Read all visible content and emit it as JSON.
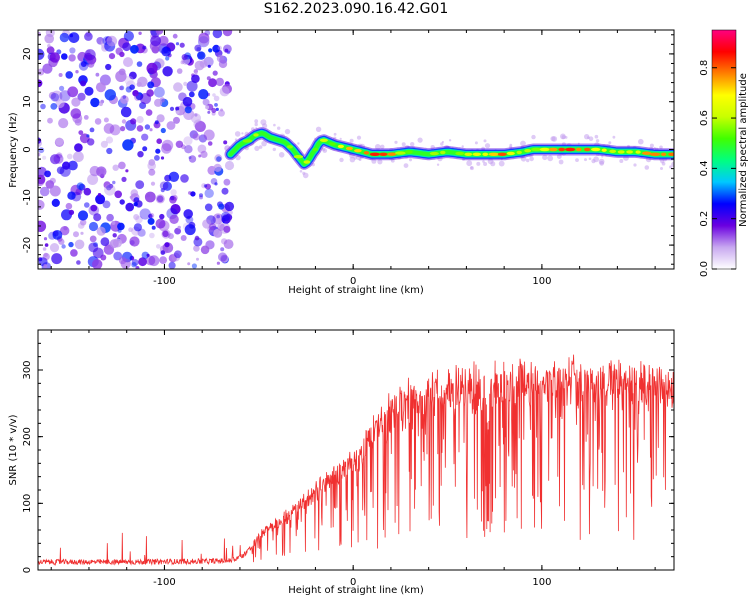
{
  "title": "S162.2023.090.16.42.G01",
  "chart_data": [
    {
      "type": "heatmap",
      "title": "S162.2023.090.16.42.G01",
      "xlabel": "Height of straight line (km)",
      "ylabel": "Frequency (Hz)",
      "xlim": [
        -167,
        170
      ],
      "ylim": [
        -25,
        25
      ],
      "x_ticks": [
        -100,
        0,
        100
      ],
      "x_tick_labels": [
        "-100",
        "0",
        "100"
      ],
      "y_ticks": [
        -20,
        -10,
        0,
        10,
        20
      ],
      "y_tick_labels": [
        "-20",
        "-10",
        "0",
        "10",
        "20"
      ],
      "colorbar": {
        "label": "Normalized spectral amplitude",
        "range": [
          0,
          0.95
        ],
        "ticks": [
          0.0,
          0.2,
          0.4,
          0.6,
          0.8
        ],
        "tick_labels": [
          "0.0",
          "0.2",
          "0.4",
          "0.6",
          "0.8"
        ],
        "colors": [
          "#ffffff",
          "#c8a8f0",
          "#6a00e0",
          "#0000ff",
          "#00c8ff",
          "#00ff80",
          "#40ff00",
          "#c8ff00",
          "#ffff00",
          "#ff8000",
          "#ff0000",
          "#ff0080"
        ]
      },
      "noise_region": {
        "x_from": -167,
        "x_to": -65,
        "color": "#8a3cf0"
      },
      "ridge": {
        "x": [
          -65,
          -60,
          -55,
          -52,
          -48,
          -44,
          -40,
          -36,
          -32,
          -28,
          -26,
          -24,
          -22,
          -20,
          -18,
          -16,
          -13,
          -10,
          -5,
          0,
          5,
          10,
          20,
          30,
          40,
          50,
          60,
          70,
          80,
          90,
          95,
          100,
          110,
          120,
          130,
          140,
          150,
          160,
          170
        ],
        "y": [
          -1,
          1,
          2,
          3,
          3.5,
          2.5,
          2,
          1.5,
          0,
          -2,
          -3,
          -2.5,
          -1,
          0,
          1.5,
          2,
          1.5,
          1,
          0.5,
          0,
          -0.5,
          -1,
          -1,
          -0.5,
          -1,
          -0.5,
          -1,
          -1,
          -1,
          -0.5,
          0,
          0,
          0,
          0,
          0,
          -0.5,
          -0.5,
          -1,
          -1
        ],
        "amplitude": [
          0.35,
          0.45,
          0.55,
          0.6,
          0.55,
          0.5,
          0.45,
          0.5,
          0.55,
          0.7,
          0.8,
          0.6,
          0.5,
          0.5,
          0.55,
          0.6,
          0.55,
          0.6,
          0.7,
          0.85,
          0.8,
          0.9,
          0.75,
          0.5,
          0.6,
          0.55,
          0.6,
          0.75,
          0.85,
          0.6,
          0.55,
          0.7,
          0.8,
          0.85,
          0.75,
          0.6,
          0.65,
          0.85,
          0.9
        ]
      }
    },
    {
      "type": "line",
      "title": "",
      "xlabel": "Height of straight line (km)",
      "ylabel": "SNR (10 * v/v)",
      "xlim": [
        -167,
        170
      ],
      "ylim": [
        0,
        360
      ],
      "x_ticks": [
        -100,
        0,
        100
      ],
      "x_tick_labels": [
        "-100",
        "0",
        "100"
      ],
      "y_ticks": [
        0,
        100,
        200,
        300
      ],
      "y_tick_labels": [
        "0",
        "100",
        "200",
        "300"
      ],
      "color": "#f03030",
      "envelope": {
        "x": [
          -167,
          -120,
          -80,
          -65,
          -58,
          -52,
          -45,
          -35,
          -25,
          -15,
          -5,
          5,
          10,
          15,
          20,
          30,
          45,
          60,
          80,
          100,
          120,
          140,
          160,
          170
        ],
        "y": [
          12,
          12,
          13,
          14,
          22,
          45,
          70,
          85,
          110,
          140,
          160,
          190,
          220,
          235,
          250,
          270,
          285,
          290,
          295,
          300,
          305,
          300,
          290,
          285
        ]
      }
    }
  ]
}
